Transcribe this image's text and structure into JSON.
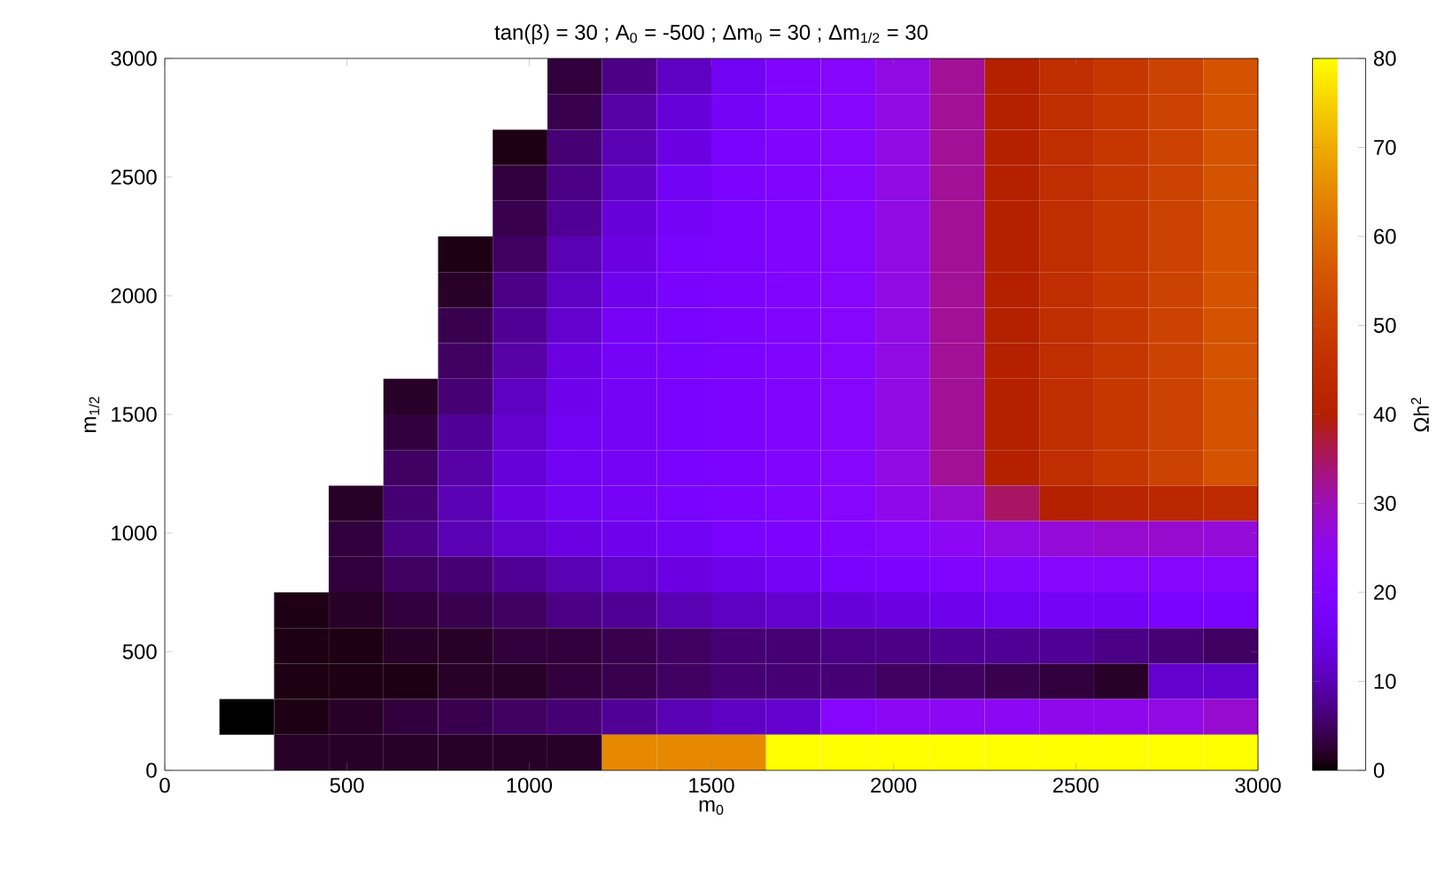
{
  "chart_data": {
    "type": "heatmap",
    "title": "tan(β) = 30 ; A$_{0}$ = -500 ; Δm$_{0}$ = 30 ; Δm$_{1/2}$ = 30",
    "xlabel": "m$_{0}$",
    "ylabel": "m$_{1/2}$",
    "clabel": "Ωh$^{2}$",
    "x": [
      75,
      225,
      375,
      525,
      675,
      825,
      975,
      1125,
      1275,
      1425,
      1575,
      1725,
      1875,
      2025,
      2175,
      2325,
      2475,
      2625,
      2775,
      2925
    ],
    "y": [
      2925,
      2775,
      2625,
      2475,
      2325,
      2175,
      2025,
      1875,
      1725,
      1575,
      1425,
      1275,
      1125,
      975,
      825,
      675,
      525,
      375,
      225,
      75
    ],
    "xlim": [
      0,
      3000
    ],
    "ylim": [
      0,
      3000
    ],
    "xticks": [
      0,
      500,
      1000,
      1500,
      2000,
      2500,
      3000
    ],
    "yticks": [
      0,
      500,
      1000,
      1500,
      2000,
      2500,
      3000
    ],
    "clim": [
      0,
      80
    ],
    "cticks": [
      0,
      10,
      20,
      30,
      40,
      50,
      60,
      70,
      80
    ],
    "cells": [
      [
        null,
        null,
        null,
        null,
        null,
        null,
        null,
        3,
        7,
        11,
        16,
        20,
        22,
        26,
        32,
        40,
        45,
        48,
        51,
        55
      ],
      [
        null,
        null,
        null,
        null,
        null,
        null,
        null,
        4,
        9,
        13,
        17,
        20,
        22,
        26,
        32,
        40,
        45,
        48,
        51,
        55
      ],
      [
        null,
        null,
        null,
        null,
        null,
        null,
        1,
        6,
        10,
        14,
        18,
        20,
        22,
        26,
        32,
        40,
        45,
        48,
        51,
        55
      ],
      [
        null,
        null,
        null,
        null,
        null,
        null,
        3,
        7,
        11,
        16,
        19,
        20,
        22,
        26,
        32,
        40,
        45,
        48,
        51,
        55
      ],
      [
        null,
        null,
        null,
        null,
        null,
        null,
        4,
        8,
        13,
        17,
        19,
        20,
        22,
        26,
        32,
        40,
        45,
        48,
        51,
        55
      ],
      [
        null,
        null,
        null,
        null,
        null,
        1,
        5,
        10,
        14,
        18,
        19,
        20,
        22,
        26,
        32,
        40,
        45,
        48,
        51,
        55
      ],
      [
        null,
        null,
        null,
        null,
        null,
        2,
        7,
        11,
        15,
        18,
        19,
        20,
        22,
        26,
        32,
        40,
        45,
        48,
        51,
        55
      ],
      [
        null,
        null,
        null,
        null,
        null,
        4,
        8,
        12,
        17,
        18,
        19,
        20,
        22,
        26,
        32,
        40,
        45,
        48,
        51,
        55
      ],
      [
        null,
        null,
        null,
        null,
        null,
        5,
        9,
        14,
        17,
        18,
        19,
        20,
        22,
        26,
        32,
        40,
        45,
        48,
        51,
        55
      ],
      [
        null,
        null,
        null,
        null,
        2,
        6,
        11,
        15,
        17,
        18,
        19,
        20,
        22,
        26,
        32,
        40,
        45,
        48,
        51,
        55
      ],
      [
        null,
        null,
        null,
        null,
        3,
        8,
        12,
        16,
        17,
        18,
        19,
        20,
        22,
        26,
        32,
        40,
        45,
        48,
        51,
        55
      ],
      [
        null,
        null,
        null,
        null,
        5,
        9,
        13,
        16,
        17,
        18,
        19,
        20,
        22,
        26,
        32,
        40,
        45,
        48,
        51,
        55
      ],
      [
        null,
        null,
        null,
        2,
        6,
        10,
        14,
        16,
        17,
        18,
        19,
        20,
        22,
        25,
        28,
        35,
        40,
        42,
        43,
        44
      ],
      [
        null,
        null,
        null,
        3,
        7,
        10,
        12,
        14,
        15,
        16,
        18,
        19,
        20,
        22,
        24,
        26,
        27,
        28,
        28,
        27
      ],
      [
        null,
        null,
        null,
        3,
        5,
        6,
        8,
        10,
        12,
        14,
        15,
        17,
        18,
        19,
        20,
        21,
        22,
        22,
        22,
        22
      ],
      [
        null,
        null,
        1,
        2,
        3,
        4,
        5,
        7,
        8,
        10,
        11,
        12,
        13,
        14,
        15,
        16,
        17,
        17,
        18,
        18
      ],
      [
        null,
        null,
        1,
        1,
        2,
        2,
        3,
        3,
        4,
        5,
        6,
        6,
        7,
        7,
        8,
        8,
        8,
        7,
        6,
        5
      ],
      [
        null,
        null,
        1,
        1,
        1,
        2,
        2,
        3,
        4,
        5,
        6,
        6,
        6,
        5,
        5,
        4,
        3,
        2,
        12,
        12
      ],
      [
        null,
        0,
        1,
        2,
        3,
        4,
        5,
        6,
        8,
        10,
        11,
        12,
        22,
        24,
        24,
        24,
        25,
        25,
        26,
        28
      ],
      [
        null,
        null,
        2,
        2,
        2,
        2,
        2,
        2,
        65,
        65,
        65,
        80,
        80,
        80,
        80,
        80,
        80,
        80,
        80,
        80
      ]
    ]
  }
}
